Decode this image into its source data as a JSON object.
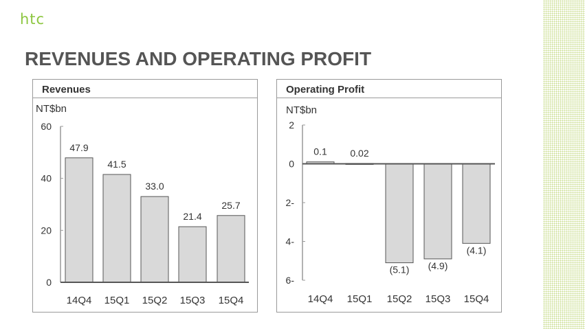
{
  "logo": "htc",
  "title": "REVENUES AND OPERATING PROFIT",
  "chart_data": [
    {
      "type": "bar",
      "title": "Revenues",
      "ylabel": "NT$bn",
      "categories": [
        "14Q4",
        "15Q1",
        "15Q2",
        "15Q3",
        "15Q4"
      ],
      "values": [
        47.9,
        41.5,
        33.0,
        21.4,
        25.7
      ],
      "value_labels": [
        "47.9",
        "41.5",
        "33.0",
        "21.4",
        "25.7"
      ],
      "ylim": [
        0,
        60
      ],
      "yticks": [
        0,
        20,
        40,
        60
      ],
      "ytick_labels": [
        "0",
        "20",
        "40",
        "60"
      ],
      "bar_color": "#d9d9d9"
    },
    {
      "type": "bar",
      "title": "Operating Profit",
      "ylabel": "NT$bn",
      "categories": [
        "14Q4",
        "15Q1",
        "15Q2",
        "15Q3",
        "15Q4"
      ],
      "values": [
        0.1,
        0.02,
        -5.1,
        -4.9,
        -4.1
      ],
      "value_labels": [
        "0.1",
        "0.02",
        "(5.1)",
        "(4.9)",
        "(4.1)"
      ],
      "ylim": [
        -6,
        2
      ],
      "yticks": [
        2,
        0,
        -2,
        -4,
        -6
      ],
      "ytick_labels": [
        "2",
        "0",
        "2-",
        "4-",
        "6-"
      ],
      "bar_color": "#d9d9d9"
    }
  ]
}
